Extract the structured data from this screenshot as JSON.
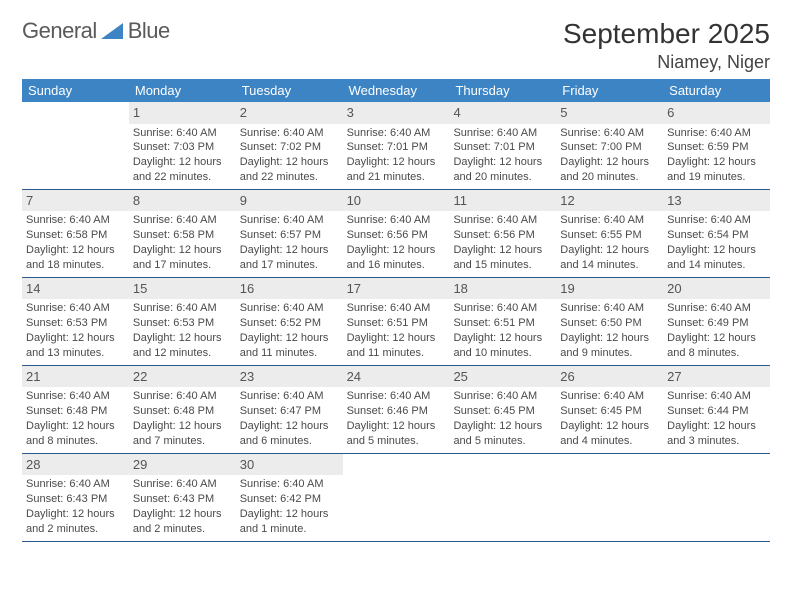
{
  "logo": {
    "text1": "General",
    "text2": "Blue"
  },
  "title": "September 2025",
  "location": "Niamey, Niger",
  "colors": {
    "header_bg": "#3d84c4",
    "header_text": "#ffffff",
    "daynum_bg": "#ececec",
    "row_border": "#2c5a8a",
    "body_text": "#4a4a4a"
  },
  "days_of_week": [
    "Sunday",
    "Monday",
    "Tuesday",
    "Wednesday",
    "Thursday",
    "Friday",
    "Saturday"
  ],
  "weeks": [
    [
      {
        "n": "",
        "sr": "",
        "ss": "",
        "dl": ""
      },
      {
        "n": "1",
        "sr": "Sunrise: 6:40 AM",
        "ss": "Sunset: 7:03 PM",
        "dl": "Daylight: 12 hours and 22 minutes."
      },
      {
        "n": "2",
        "sr": "Sunrise: 6:40 AM",
        "ss": "Sunset: 7:02 PM",
        "dl": "Daylight: 12 hours and 22 minutes."
      },
      {
        "n": "3",
        "sr": "Sunrise: 6:40 AM",
        "ss": "Sunset: 7:01 PM",
        "dl": "Daylight: 12 hours and 21 minutes."
      },
      {
        "n": "4",
        "sr": "Sunrise: 6:40 AM",
        "ss": "Sunset: 7:01 PM",
        "dl": "Daylight: 12 hours and 20 minutes."
      },
      {
        "n": "5",
        "sr": "Sunrise: 6:40 AM",
        "ss": "Sunset: 7:00 PM",
        "dl": "Daylight: 12 hours and 20 minutes."
      },
      {
        "n": "6",
        "sr": "Sunrise: 6:40 AM",
        "ss": "Sunset: 6:59 PM",
        "dl": "Daylight: 12 hours and 19 minutes."
      }
    ],
    [
      {
        "n": "7",
        "sr": "Sunrise: 6:40 AM",
        "ss": "Sunset: 6:58 PM",
        "dl": "Daylight: 12 hours and 18 minutes."
      },
      {
        "n": "8",
        "sr": "Sunrise: 6:40 AM",
        "ss": "Sunset: 6:58 PM",
        "dl": "Daylight: 12 hours and 17 minutes."
      },
      {
        "n": "9",
        "sr": "Sunrise: 6:40 AM",
        "ss": "Sunset: 6:57 PM",
        "dl": "Daylight: 12 hours and 17 minutes."
      },
      {
        "n": "10",
        "sr": "Sunrise: 6:40 AM",
        "ss": "Sunset: 6:56 PM",
        "dl": "Daylight: 12 hours and 16 minutes."
      },
      {
        "n": "11",
        "sr": "Sunrise: 6:40 AM",
        "ss": "Sunset: 6:56 PM",
        "dl": "Daylight: 12 hours and 15 minutes."
      },
      {
        "n": "12",
        "sr": "Sunrise: 6:40 AM",
        "ss": "Sunset: 6:55 PM",
        "dl": "Daylight: 12 hours and 14 minutes."
      },
      {
        "n": "13",
        "sr": "Sunrise: 6:40 AM",
        "ss": "Sunset: 6:54 PM",
        "dl": "Daylight: 12 hours and 14 minutes."
      }
    ],
    [
      {
        "n": "14",
        "sr": "Sunrise: 6:40 AM",
        "ss": "Sunset: 6:53 PM",
        "dl": "Daylight: 12 hours and 13 minutes."
      },
      {
        "n": "15",
        "sr": "Sunrise: 6:40 AM",
        "ss": "Sunset: 6:53 PM",
        "dl": "Daylight: 12 hours and 12 minutes."
      },
      {
        "n": "16",
        "sr": "Sunrise: 6:40 AM",
        "ss": "Sunset: 6:52 PM",
        "dl": "Daylight: 12 hours and 11 minutes."
      },
      {
        "n": "17",
        "sr": "Sunrise: 6:40 AM",
        "ss": "Sunset: 6:51 PM",
        "dl": "Daylight: 12 hours and 11 minutes."
      },
      {
        "n": "18",
        "sr": "Sunrise: 6:40 AM",
        "ss": "Sunset: 6:51 PM",
        "dl": "Daylight: 12 hours and 10 minutes."
      },
      {
        "n": "19",
        "sr": "Sunrise: 6:40 AM",
        "ss": "Sunset: 6:50 PM",
        "dl": "Daylight: 12 hours and 9 minutes."
      },
      {
        "n": "20",
        "sr": "Sunrise: 6:40 AM",
        "ss": "Sunset: 6:49 PM",
        "dl": "Daylight: 12 hours and 8 minutes."
      }
    ],
    [
      {
        "n": "21",
        "sr": "Sunrise: 6:40 AM",
        "ss": "Sunset: 6:48 PM",
        "dl": "Daylight: 12 hours and 8 minutes."
      },
      {
        "n": "22",
        "sr": "Sunrise: 6:40 AM",
        "ss": "Sunset: 6:48 PM",
        "dl": "Daylight: 12 hours and 7 minutes."
      },
      {
        "n": "23",
        "sr": "Sunrise: 6:40 AM",
        "ss": "Sunset: 6:47 PM",
        "dl": "Daylight: 12 hours and 6 minutes."
      },
      {
        "n": "24",
        "sr": "Sunrise: 6:40 AM",
        "ss": "Sunset: 6:46 PM",
        "dl": "Daylight: 12 hours and 5 minutes."
      },
      {
        "n": "25",
        "sr": "Sunrise: 6:40 AM",
        "ss": "Sunset: 6:45 PM",
        "dl": "Daylight: 12 hours and 5 minutes."
      },
      {
        "n": "26",
        "sr": "Sunrise: 6:40 AM",
        "ss": "Sunset: 6:45 PM",
        "dl": "Daylight: 12 hours and 4 minutes."
      },
      {
        "n": "27",
        "sr": "Sunrise: 6:40 AM",
        "ss": "Sunset: 6:44 PM",
        "dl": "Daylight: 12 hours and 3 minutes."
      }
    ],
    [
      {
        "n": "28",
        "sr": "Sunrise: 6:40 AM",
        "ss": "Sunset: 6:43 PM",
        "dl": "Daylight: 12 hours and 2 minutes."
      },
      {
        "n": "29",
        "sr": "Sunrise: 6:40 AM",
        "ss": "Sunset: 6:43 PM",
        "dl": "Daylight: 12 hours and 2 minutes."
      },
      {
        "n": "30",
        "sr": "Sunrise: 6:40 AM",
        "ss": "Sunset: 6:42 PM",
        "dl": "Daylight: 12 hours and 1 minute."
      },
      {
        "n": "",
        "sr": "",
        "ss": "",
        "dl": ""
      },
      {
        "n": "",
        "sr": "",
        "ss": "",
        "dl": ""
      },
      {
        "n": "",
        "sr": "",
        "ss": "",
        "dl": ""
      },
      {
        "n": "",
        "sr": "",
        "ss": "",
        "dl": ""
      }
    ]
  ]
}
